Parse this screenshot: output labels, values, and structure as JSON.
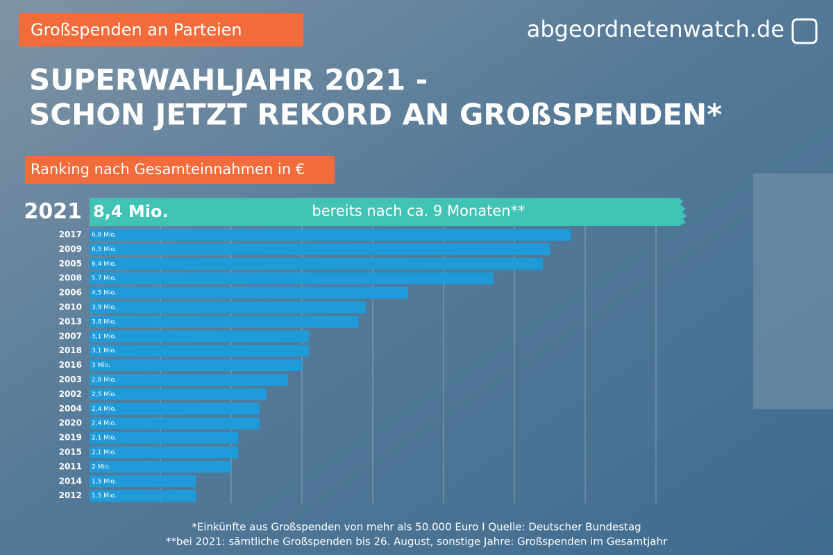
{
  "header": {
    "tag": "Großspenden an Parteien",
    "logo": "abgeordnetenwatch.de",
    "title_lines": [
      "SUPERWAHLJAHR 2021 -",
      "SCHON JETZT REKORD AN GROßSPENDEN*"
    ],
    "subtitle": "Ranking nach Gesamteinnahmen in €"
  },
  "chart_data": {
    "type": "bar",
    "orientation": "horizontal",
    "color": "#1e9bd8",
    "highlight": {
      "category": "2021",
      "value": 8.4,
      "value_label": "8,4 Mio.",
      "note": "bereits nach ca. 9 Monaten**",
      "color": "#40c3b5"
    },
    "categories": [
      "2017",
      "2009",
      "2005",
      "2008",
      "2006",
      "2010",
      "2013",
      "2007",
      "2018",
      "2016",
      "2003",
      "2002",
      "2004",
      "2020",
      "2019",
      "2015",
      "2011",
      "2014",
      "2012"
    ],
    "values": [
      6.8,
      6.5,
      6.4,
      5.7,
      4.5,
      3.9,
      3.8,
      3.1,
      3.1,
      3,
      2.8,
      2.5,
      2.4,
      2.4,
      2.1,
      2.1,
      2,
      1.5,
      1.5
    ],
    "value_labels": [
      "6,8 Mio.",
      "6,5 Mio.",
      "6,4 Mio.",
      "5,7 Mio.",
      "4,5 Mio.",
      "3,9 Mio.",
      "3,8 Mio.",
      "3,1 Mio.",
      "3,1 Mio.",
      "3 Mio.",
      "2,8 Mio.",
      "2,5 Mio.",
      "2,4 Mio.",
      "2,4 Mio.",
      "2,1 Mio.",
      "2,1 Mio.",
      "2 Mio.",
      "1,5 Mio.",
      "1,5 Mio."
    ],
    "xlim": [
      0,
      8
    ],
    "xticks": [
      1,
      2,
      3,
      4,
      5,
      6,
      7,
      8
    ],
    "grid": true
  },
  "footer": {
    "lines": [
      "*Einkünfte aus Großspenden von mehr als 50.000 Euro I  Quelle: Deutscher Bundestag",
      "**bei 2021: sämtliche Großspenden bis 26. August, sonstige Jahre: Großspenden im Gesamtjahr"
    ]
  }
}
